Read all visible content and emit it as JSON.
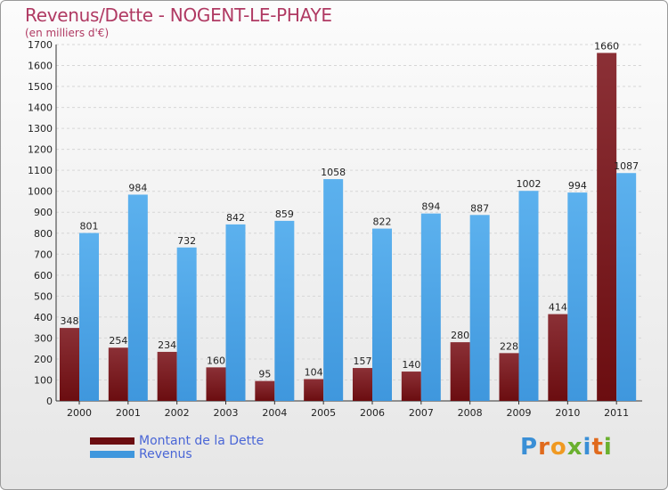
{
  "colors": {
    "dette": "#6b0d10",
    "revenus": "#3f97dd",
    "title": "#b03a63",
    "legend_text": "#4a66d6"
  },
  "logo": {
    "letters": [
      {
        "ch": "P",
        "color": "#3a8fd6"
      },
      {
        "ch": "r",
        "color": "#e06a1d"
      },
      {
        "ch": "o",
        "color": "#f09a22"
      },
      {
        "ch": "x",
        "color": "#6ab02e"
      },
      {
        "ch": "i",
        "color": "#3a8fd6"
      },
      {
        "ch": "t",
        "color": "#e06a1d"
      },
      {
        "ch": "i",
        "color": "#6ab02e"
      }
    ]
  },
  "chart_data": {
    "type": "bar",
    "title": "Revenus/Dette - NOGENT-LE-PHAYE",
    "subtitle": "(en milliers d'€)",
    "categories": [
      "2000",
      "2001",
      "2002",
      "2003",
      "2004",
      "2005",
      "2006",
      "2007",
      "2008",
      "2009",
      "2010",
      "2011"
    ],
    "series": [
      {
        "name": "Montant de la Dette",
        "values": [
          348,
          254,
          234,
          160,
          95,
          104,
          157,
          140,
          280,
          228,
          414,
          1660
        ]
      },
      {
        "name": "Revenus",
        "values": [
          801,
          984,
          732,
          842,
          859,
          1058,
          822,
          894,
          887,
          1002,
          994,
          1087
        ]
      }
    ],
    "ylim": [
      0,
      1700
    ],
    "yticks": [
      0,
      100,
      200,
      300,
      400,
      500,
      600,
      700,
      800,
      900,
      1000,
      1100,
      1200,
      1300,
      1400,
      1500,
      1600,
      1700
    ],
    "legend_position": "bottom-left"
  }
}
